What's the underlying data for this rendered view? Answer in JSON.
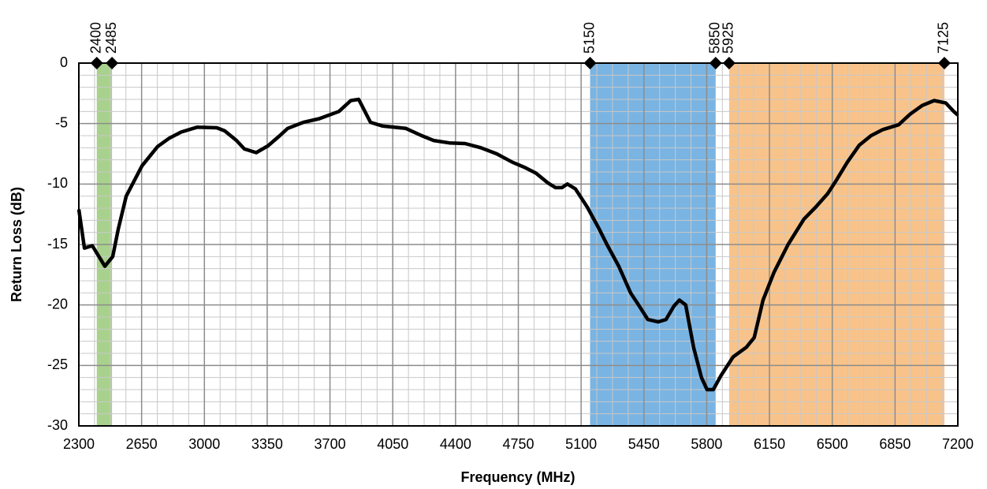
{
  "chart_data": {
    "type": "line",
    "x_label": "Frequency (MHz)",
    "y_label": "Return Loss (dB)",
    "x": [
      2300,
      2331,
      2375,
      2445,
      2489,
      2520,
      2564,
      2652,
      2739,
      2805,
      2871,
      2959,
      3069,
      3113,
      3179,
      3223,
      3289,
      3354,
      3420,
      3464,
      3552,
      3640,
      3750,
      3816,
      3860,
      3926,
      3992,
      4123,
      4211,
      4277,
      4365,
      4453,
      4541,
      4629,
      4717,
      4782,
      4848,
      4914,
      4958,
      4993,
      5024,
      5068,
      5134,
      5200,
      5244,
      5310,
      5376,
      5420,
      5472,
      5529,
      5573,
      5617,
      5648,
      5683,
      5727,
      5771,
      5802,
      5837,
      5881,
      5947,
      6021,
      6065,
      6114,
      6175,
      6254,
      6342,
      6408,
      6474,
      6518,
      6584,
      6650,
      6716,
      6782,
      6870,
      6936,
      7002,
      7068,
      7133,
      7177,
      7200
    ],
    "series": [
      {
        "color": "#000000",
        "values": [
          -12.1,
          -15.3,
          -15.1,
          -16.8,
          -16.0,
          -13.7,
          -11.0,
          -8.5,
          -6.9,
          -6.2,
          -5.7,
          -5.3,
          -5.35,
          -5.6,
          -6.4,
          -7.1,
          -7.4,
          -6.85,
          -6.0,
          -5.4,
          -4.9,
          -4.6,
          -4.0,
          -3.1,
          -3.0,
          -4.9,
          -5.2,
          -5.4,
          -6.0,
          -6.4,
          -6.6,
          -6.65,
          -7.0,
          -7.5,
          -8.2,
          -8.6,
          -9.1,
          -9.9,
          -10.3,
          -10.3,
          -10.0,
          -10.4,
          -11.9,
          -13.7,
          -15.0,
          -16.8,
          -19.0,
          -20.0,
          -21.2,
          -21.4,
          -21.2,
          -20.1,
          -19.6,
          -20.0,
          -23.5,
          -26.0,
          -27.0,
          -27.0,
          -25.8,
          -24.3,
          -23.5,
          -22.7,
          -19.6,
          -17.3,
          -15.0,
          -12.9,
          -11.9,
          -10.8,
          -9.8,
          -8.2,
          -6.8,
          -6.0,
          -5.5,
          -5.1,
          -4.2,
          -3.5,
          -3.1,
          -3.3,
          -4.0,
          -4.3
        ]
      }
    ],
    "xlim": [
      2300,
      7200
    ],
    "xticks": [
      2300,
      2650,
      3000,
      3350,
      3700,
      4050,
      4400,
      4750,
      5100,
      5450,
      5800,
      6150,
      6500,
      6850,
      7200
    ],
    "ylim": [
      -30,
      0
    ],
    "yticks": [
      -30,
      -25,
      -20,
      -15,
      -10,
      -5,
      0
    ],
    "grid": true,
    "minor_grid": {
      "x": 4,
      "y": 5
    },
    "bands": [
      {
        "from": 2400,
        "to": 2485,
        "color": "#a9d18e"
      },
      {
        "from": 5150,
        "to": 5850,
        "color": "#7ab4e2"
      },
      {
        "from": 5925,
        "to": 7125,
        "color": "#f8c38a"
      }
    ],
    "markers": [
      2400,
      2485,
      5150,
      5850,
      5925,
      7125
    ]
  }
}
